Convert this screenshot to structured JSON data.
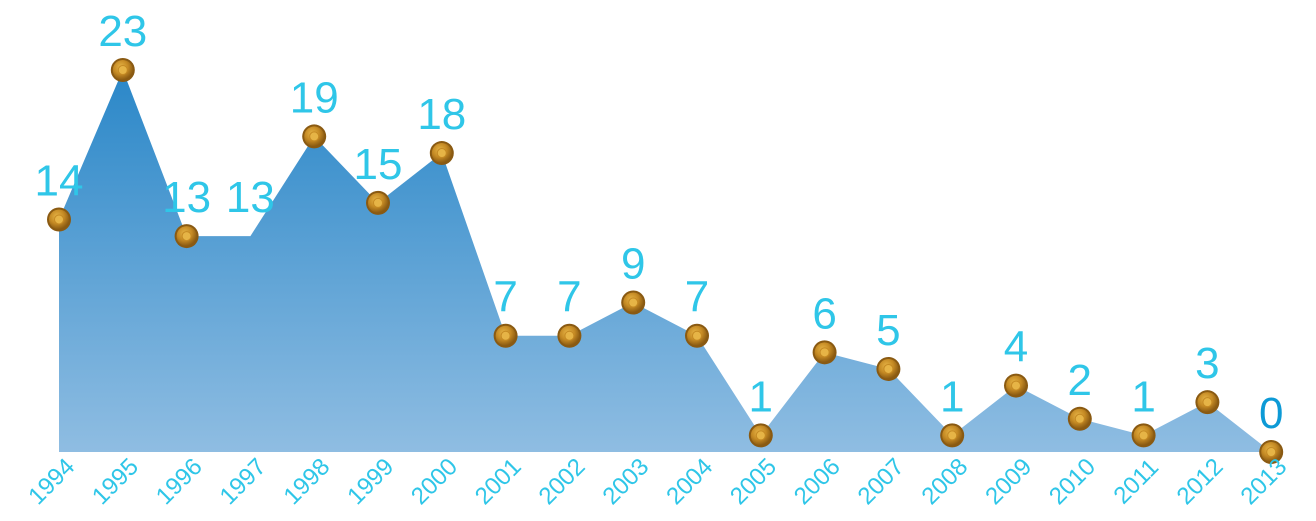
{
  "chart_data": {
    "type": "area",
    "x": [
      "1994",
      "1995",
      "1996",
      "1997",
      "1998",
      "1999",
      "2000",
      "2001",
      "2002",
      "2003",
      "2004",
      "2005",
      "2006",
      "2007",
      "2008",
      "2009",
      "2010",
      "2011",
      "2012",
      "2013"
    ],
    "values": [
      14,
      23,
      13,
      13,
      19,
      15,
      18,
      7,
      7,
      9,
      7,
      1,
      6,
      5,
      1,
      4,
      2,
      1,
      3,
      0
    ],
    "value_labels": [
      "14",
      "23",
      "13",
      "13",
      "19",
      "15",
      "18",
      "7",
      "7",
      "9",
      "7",
      "1",
      "6",
      "5",
      "1",
      "4",
      "2",
      "1",
      "3",
      "0"
    ],
    "ylim": [
      0,
      23
    ],
    "grid": false,
    "colors": {
      "area_top": "#2a87c8",
      "area_bottom": "#8fbde2",
      "label": "#2fc6e8",
      "label_last": "#0d9ad6",
      "axis_label": "#2fc6e8",
      "marker_outer": "#8a5a12",
      "marker_mid": "#c58a24",
      "marker_inner": "#e6b446"
    },
    "markers_shown": [
      true,
      true,
      true,
      false,
      true,
      true,
      true,
      true,
      true,
      true,
      true,
      true,
      true,
      true,
      true,
      true,
      true,
      true,
      true,
      true
    ]
  }
}
